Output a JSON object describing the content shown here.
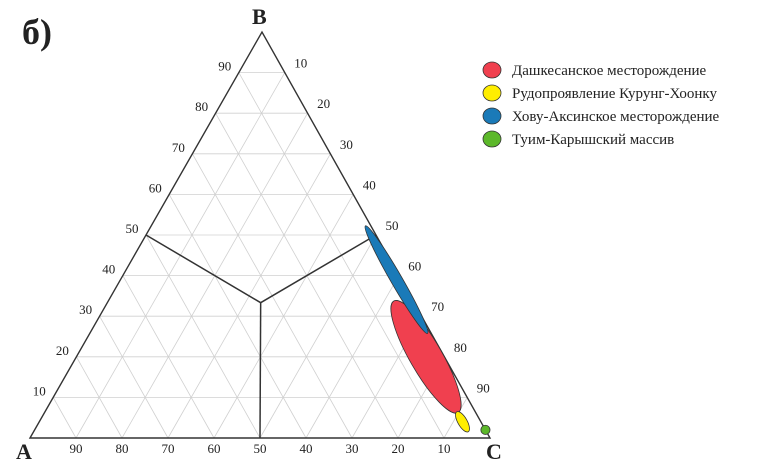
{
  "panel_label": "б)",
  "chart_data": {
    "type": "ternary",
    "vertices": {
      "left": "A",
      "top": "B",
      "right": "C"
    },
    "grid_step": 10,
    "grid": true,
    "left_edge_ticks": [
      10,
      20,
      30,
      40,
      50,
      60,
      70,
      80,
      90
    ],
    "right_edge_ticks": [
      10,
      20,
      30,
      40,
      50,
      60,
      70,
      80,
      90
    ],
    "bottom_edge_ticks": [
      90,
      80,
      70,
      60,
      50,
      40,
      30,
      20,
      10
    ],
    "legend_position": "top-right",
    "series": [
      {
        "name": "Дашкесанское месторождение",
        "color": "#f0404f",
        "shape": "ellipse",
        "center": {
          "A": 4,
          "B": 20,
          "C": 76
        },
        "length": 28,
        "width": 7,
        "tilt_deg": -30
      },
      {
        "name": "Рудопроявление Курунг-Хоонку",
        "color": "#ffee00",
        "shape": "ellipse",
        "center": {
          "A": 4,
          "B": 4,
          "C": 92
        },
        "length": 5,
        "width": 2,
        "tilt_deg": -30
      },
      {
        "name": "Хову-Аксинское месторождение",
        "color": "#1a7ab8",
        "shape": "ellipse",
        "center": {
          "A": 1,
          "B": 39,
          "C": 60
        },
        "length": 27,
        "width": 2.5,
        "tilt_deg": -30
      },
      {
        "name": "Туим-Карышский массив",
        "color": "#5cb82a",
        "shape": "circle",
        "center": {
          "A": 0,
          "B": 2,
          "C": 98
        },
        "length": 2,
        "width": 2,
        "tilt_deg": 0
      }
    ],
    "annotations": [
      {
        "type": "partition-lines",
        "meeting_point": {
          "A": 33.3,
          "B": 33.3,
          "C": 33.3
        },
        "ends": [
          {
            "A": 50,
            "B": 50,
            "C": 0
          },
          {
            "A": 0,
            "B": 50,
            "C": 50
          },
          {
            "A": 50,
            "B": 0,
            "C": 50
          }
        ]
      }
    ]
  }
}
